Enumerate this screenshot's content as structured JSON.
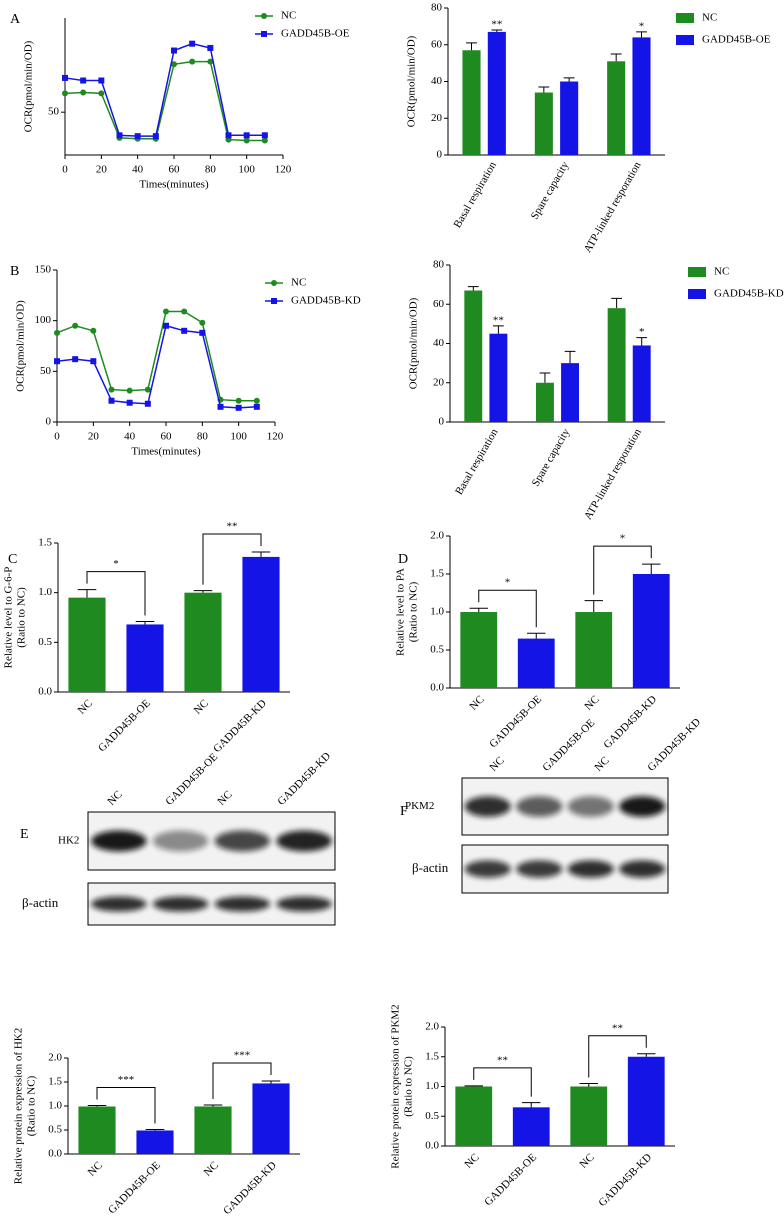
{
  "panel_labels": [
    "A",
    "B",
    "C",
    "D",
    "E",
    "F"
  ],
  "chart_data": [
    {
      "type": "line",
      "xlabel": "Times(minutes)",
      "ylabel": "OCR(pmol/min/OD)",
      "x": [
        0,
        10,
        20,
        30,
        40,
        50,
        60,
        70,
        80,
        90,
        100,
        110
      ],
      "series": [
        {
          "name": "NC",
          "color": "#1f8a1f",
          "marker": "circle",
          "values": [
            72,
            73,
            72,
            20,
            19,
            19,
            106,
            109,
            109,
            18,
            17,
            17
          ]
        },
        {
          "name": "GADD45B-OE",
          "color": "#1414e6",
          "marker": "square",
          "values": [
            90,
            87,
            87,
            23,
            22,
            22,
            122,
            130,
            125,
            23,
            23,
            23
          ]
        }
      ],
      "xlim": [
        0,
        120
      ],
      "xticks": [
        0,
        20,
        40,
        60,
        80,
        100,
        120
      ],
      "ylim": [
        0,
        160
      ],
      "yticks": [
        50
      ]
    },
    {
      "type": "grouped-bar",
      "ylabel": "OCR(pmol/min/OD)",
      "categories": [
        "Basal respiration",
        "Spare capacity",
        "ATP-linked resporation"
      ],
      "series": [
        {
          "name": "NC",
          "color": "#1f8a1f",
          "values": [
            57,
            34,
            51
          ],
          "errors": [
            4,
            3,
            4
          ]
        },
        {
          "name": "GADD45B-OE",
          "color": "#1414e6",
          "values": [
            67,
            40,
            64
          ],
          "errors": [
            1,
            2,
            3
          ]
        }
      ],
      "significance": [
        "**",
        null,
        "*"
      ],
      "ylim": [
        0,
        80
      ],
      "yticks": [
        0,
        20,
        40,
        60,
        80
      ]
    },
    {
      "type": "line",
      "xlabel": "Times(minutes)",
      "ylabel": "OCR(pmol/min/OD)",
      "x": [
        0,
        10,
        20,
        30,
        40,
        50,
        60,
        70,
        80,
        90,
        100,
        110
      ],
      "series": [
        {
          "name": "NC",
          "color": "#1f8a1f",
          "marker": "circle",
          "values": [
            88,
            95,
            90,
            32,
            31,
            32,
            109,
            109,
            98,
            22,
            21,
            21
          ]
        },
        {
          "name": "GADD45B-KD",
          "color": "#1414e6",
          "marker": "square",
          "values": [
            60,
            62,
            60,
            21,
            19,
            18,
            95,
            90,
            88,
            15,
            14,
            15
          ]
        }
      ],
      "xlim": [
        0,
        120
      ],
      "xticks": [
        0,
        20,
        40,
        60,
        80,
        100,
        120
      ],
      "ylim": [
        0,
        150
      ],
      "yticks": [
        0,
        50,
        100,
        150
      ]
    },
    {
      "type": "grouped-bar",
      "ylabel": "OCR(pmol/min/OD)",
      "categories": [
        "Basal respiration",
        "Spare capacity",
        "ATP-linked resporation"
      ],
      "series": [
        {
          "name": "NC",
          "color": "#1f8a1f",
          "values": [
            67,
            20,
            58
          ],
          "errors": [
            2,
            5,
            5
          ]
        },
        {
          "name": "GADD45B-KD",
          "color": "#1414e6",
          "values": [
            45,
            30,
            39
          ],
          "errors": [
            4,
            6,
            4
          ]
        }
      ],
      "significance": [
        "**",
        null,
        "*"
      ],
      "ylim": [
        0,
        80
      ],
      "yticks": [
        0,
        20,
        40,
        60,
        80
      ]
    },
    {
      "type": "bar",
      "ylabel": [
        "Relative level to G-6-P",
        "(Ratio to NC)"
      ],
      "categories": [
        "NC",
        "GADD45B-OE",
        "NC",
        "GADD45B-KD"
      ],
      "values": [
        0.95,
        0.68,
        1.0,
        1.36
      ],
      "errors": [
        0.08,
        0.03,
        0.02,
        0.05
      ],
      "colors": [
        "#1f8a1f",
        "#1414e6",
        "#1f8a1f",
        "#1414e6"
      ],
      "significance": [
        "*",
        "**"
      ],
      "ylim": [
        0,
        1.5
      ],
      "yticks": [
        {
          "value": 0,
          "label": "0.0"
        },
        0.5,
        {
          "value": 1,
          "label": "1.0"
        },
        1.5
      ]
    },
    {
      "type": "bar",
      "ylabel": [
        "Relative level to PA",
        "(Ratio to NC)"
      ],
      "categories": [
        "NC",
        "GADD45B-OE",
        "NC",
        "GADD45B-KD"
      ],
      "values": [
        1.0,
        0.65,
        1.0,
        1.5
      ],
      "errors": [
        0.05,
        0.07,
        0.15,
        0.13
      ],
      "colors": [
        "#1f8a1f",
        "#1414e6",
        "#1f8a1f",
        "#1414e6"
      ],
      "significance": [
        "*",
        "*"
      ],
      "ylim": [
        0,
        2
      ],
      "yticks": [
        {
          "value": 0,
          "label": "0.0"
        },
        0.5,
        {
          "value": 1,
          "label": "1.0"
        },
        1.5,
        {
          "value": 2,
          "label": "2.0"
        }
      ]
    },
    {
      "type": "bar",
      "ylabel": [
        "Relative protein expression of  HK2",
        "(Ratio to NC)"
      ],
      "categories": [
        "NC",
        "GADD45B-OE",
        "NC",
        "GADD45B-KD"
      ],
      "values": [
        0.99,
        0.49,
        0.99,
        1.47
      ],
      "errors": [
        0.02,
        0.02,
        0.03,
        0.05
      ],
      "colors": [
        "#1f8a1f",
        "#1414e6",
        "#1f8a1f",
        "#1414e6"
      ],
      "significance": [
        "***",
        "***"
      ],
      "ylim": [
        0,
        2
      ],
      "yticks": [
        {
          "value": 0,
          "label": "0.0"
        },
        0.5,
        {
          "value": 1,
          "label": "1.0"
        },
        1.5,
        {
          "value": 2,
          "label": "2.0"
        }
      ]
    },
    {
      "type": "bar",
      "ylabel": [
        "Relative protein expression of  PKM2",
        "(Ratio to NC)"
      ],
      "categories": [
        "NC",
        "GADD45B-OE",
        "NC",
        "GADD45B-KD"
      ],
      "values": [
        1.0,
        0.65,
        1.0,
        1.5
      ],
      "errors": [
        0.01,
        0.08,
        0.05,
        0.05
      ],
      "colors": [
        "#1f8a1f",
        "#1414e6",
        "#1f8a1f",
        "#1414e6"
      ],
      "significance": [
        "**",
        "**"
      ],
      "ylim": [
        0,
        2
      ],
      "yticks": [
        {
          "value": 0,
          "label": "0.0"
        },
        0.5,
        {
          "value": 1,
          "label": "1.0"
        },
        1.5,
        {
          "value": 2,
          "label": "2.0"
        }
      ]
    }
  ],
  "blots": [
    {
      "lanes": [
        "NC",
        "GADD45B-OE",
        "NC",
        "GADD45B-KD"
      ],
      "rows": [
        "HK2",
        "β-actin"
      ]
    },
    {
      "lanes": [
        "NC",
        "GADD45B-OE",
        "NC",
        "GADD45B-KD"
      ],
      "rows": [
        "PKM2",
        "β-actin"
      ]
    }
  ]
}
